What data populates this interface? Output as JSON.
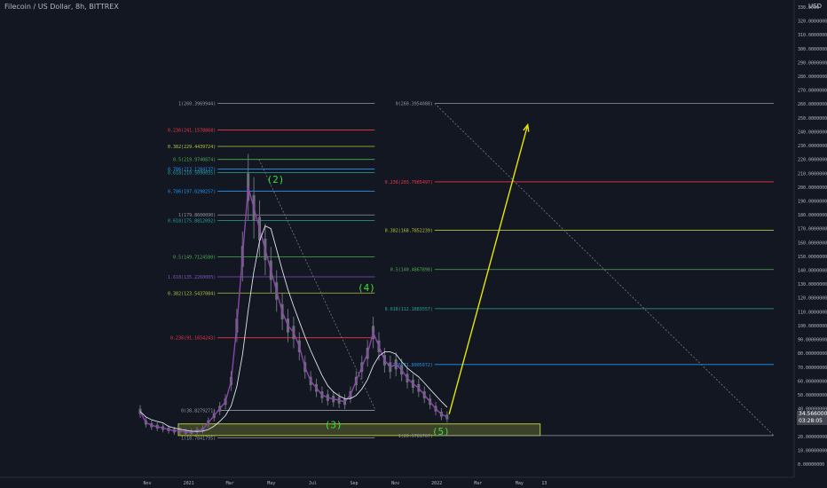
{
  "header": {
    "symbol_line": "Filecoin / US Dollar, 8h, BITTREX",
    "currency": "USD"
  },
  "price_badge": {
    "price": "34.56600000",
    "countdown": "03:28:05"
  },
  "colors": {
    "background": "#131722",
    "candles": "#6b6f7a",
    "moving_average_fast": "#8e44ad",
    "moving_average_slow": "#e0e3eb",
    "projection_arrow": "#e6e600",
    "target_zone": "#b5c43a",
    "wave_label": "#3ddc3d",
    "fib_0": "#9598a1",
    "fib_0236": "#f23645",
    "fib_0382": "#b5c43a",
    "fib_05": "#4caf50",
    "fib_0618": "#26a69a",
    "fib_0786": "#2196f3",
    "fib_1": "#9598a1"
  },
  "chart_data": {
    "type": "line",
    "title": "Filecoin / US Dollar, 8h, BITTREX",
    "ylabel": "USD",
    "ylim": [
      0,
      330
    ],
    "y_scale": "linear",
    "grid": false,
    "x_tick_labels": [
      "Nov",
      "2021",
      "Mar",
      "May",
      "Jul",
      "Sep",
      "Nov",
      "2022",
      "Mar",
      "May",
      "13"
    ],
    "y_tick_labels": [
      "0.00000000",
      "10.00000000",
      "20.00000000",
      "30.00000000",
      "40.00000000",
      "50.00000000",
      "60.00000000",
      "70.00000000",
      "80.00000000",
      "90.00000000",
      "100.0000000",
      "110.0000000",
      "120.0000000",
      "130.0000000",
      "140.0000000",
      "150.0000000",
      "160.0000000",
      "170.0000000",
      "180.0000000",
      "190.0000000",
      "200.0000000",
      "210.0000000",
      "220.0000000",
      "230.0000000",
      "240.0000000",
      "250.0000000",
      "260.0000000",
      "270.0000000",
      "280.0000000",
      "290.0000000",
      "300.0000000",
      "310.0000000",
      "320.0000000",
      "330.0000"
    ],
    "y_tick_values": [
      0,
      10,
      20,
      30,
      40,
      50,
      60,
      70,
      80,
      90,
      100,
      110,
      120,
      130,
      140,
      150,
      160,
      170,
      180,
      190,
      200,
      210,
      220,
      230,
      240,
      250,
      260,
      270,
      280,
      290,
      300,
      310,
      320,
      330
    ],
    "x_tick_index": [
      0,
      2,
      4,
      6,
      8,
      10,
      12,
      14,
      16,
      18,
      19.2
    ],
    "series": [
      {
        "values": [
          38,
          30,
          28,
          27,
          26,
          25,
          24,
          24,
          23,
          23,
          24,
          25,
          30,
          35,
          40,
          45,
          60,
          100,
          150,
          200,
          185,
          170,
          155,
          140,
          125,
          110,
          100,
          95,
          85,
          70,
          60,
          55,
          50,
          48,
          47,
          46,
          45,
          50,
          60,
          70,
          80,
          95,
          85,
          75,
          70,
          72,
          68,
          62,
          58,
          55,
          50,
          45,
          40,
          36,
          34
        ]
      }
    ],
    "fib_left": [
      {
        "label": "1(260.3969944)",
        "value": 260.4
      },
      {
        "label": "0.236(241.1578868)",
        "value": 241.2
      },
      {
        "label": "0.382(229.4439724)",
        "value": 229.4
      },
      {
        "label": "0.5(219.9740874)",
        "value": 220.0
      },
      {
        "label": "0.786(213.1284137)",
        "value": 213.1
      },
      {
        "label": "0.618(210.5090035)",
        "value": 210.5
      },
      {
        "label": "0.786(197.0298257)",
        "value": 197.0
      },
      {
        "label": "1(179.8600090)",
        "value": 179.9
      },
      {
        "label": "0.618(175.8812092)",
        "value": 175.9
      },
      {
        "label": "0.5(149.7124580)",
        "value": 149.7
      },
      {
        "label": "1.618(135.2260005)",
        "value": 135.2
      },
      {
        "label": "0.382(123.5437084)",
        "value": 123.5
      },
      {
        "label": "0.236(91.1654243)",
        "value": 91.2
      },
      {
        "label": "0(38.8279271)",
        "value": 38.8
      },
      {
        "label": "1(18.7841795)",
        "value": 18.8
      }
    ],
    "fib_right": [
      {
        "label": "0(260.3954088)",
        "value": 260.4
      },
      {
        "label": "0.236(203.7985497)",
        "value": 203.8
      },
      {
        "label": "0.382(168.7852239)",
        "value": 168.8
      },
      {
        "label": "0.5(140.4867898)",
        "value": 140.5
      },
      {
        "label": "0.618(112.1883557)",
        "value": 112.2
      },
      {
        "label": "0.786(71.8905972)",
        "value": 71.9
      },
      {
        "label": "1(20.5781707)",
        "value": 20.6
      }
    ],
    "wave_labels": [
      {
        "label": "(2)",
        "x_index": 6.2,
        "value": 203
      },
      {
        "label": "(3)",
        "x_index": 9.0,
        "value": 26
      },
      {
        "label": "(4)",
        "x_index": 10.6,
        "value": 125
      },
      {
        "label": "(5)",
        "x_index": 14.2,
        "value": 21
      }
    ],
    "projection": {
      "from_index": 14.6,
      "from_value": 36,
      "to_index": 18.4,
      "to_value": 245
    },
    "target_zone": {
      "from_index": 1.5,
      "to_index": 19.0,
      "low": 20.6,
      "high": 29
    }
  }
}
